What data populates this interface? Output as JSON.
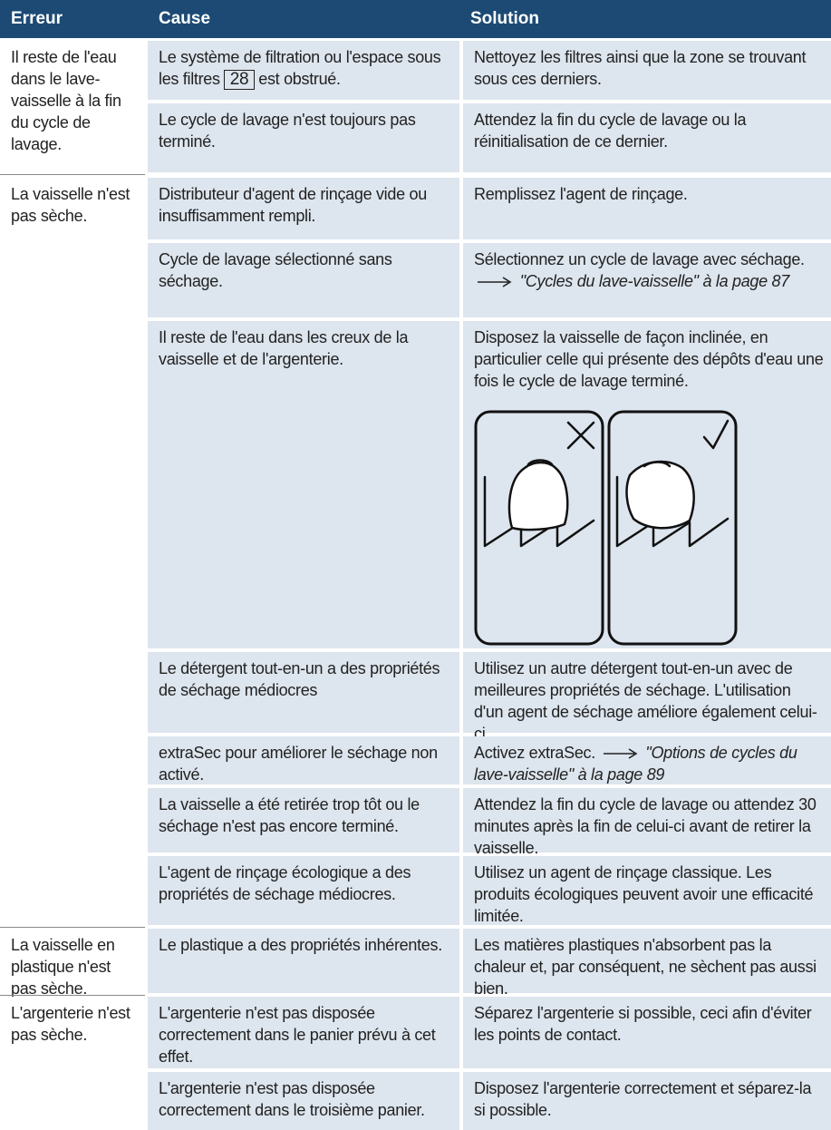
{
  "header": {
    "error": "Erreur",
    "cause": "Cause",
    "solution": "Solution"
  },
  "groups": [
    {
      "error": "Il reste de l'eau dans le lave-vaisselle à la fin du cycle de lavage.",
      "items": [
        {
          "cause": "Le système de filtration ou l'espace sous les filtres",
          "cause_ref": "28",
          "cause_end": "est obstrué.",
          "solution": "Nettoyez les filtres ainsi que la zone se trouvant sous ces derniers."
        },
        {
          "cause": "Le cycle de lavage n'est toujours pas terminé.",
          "solution": "Attendez la fin du cycle de lavage ou la réinitialisation de ce dernier."
        }
      ]
    },
    {
      "error": "La vaisselle n'est pas sèche.",
      "items": [
        {
          "cause": "Distributeur d'agent de rinçage vide ou insuffisamment rempli.",
          "solution": "Remplissez l'agent de rinçage."
        },
        {
          "cause": "Cycle de lavage sélectionné sans séchage.",
          "solution": "Sélectionnez un cycle de lavage avec séchage.",
          "link": "\"Cycles du lave-vaisselle\" à la page 87"
        },
        {
          "cause": "Il reste de l'eau dans les creux de la vaisselle et de l'argenterie.",
          "solution": "Disposez la vaisselle de façon inclinée, en particulier celle qui présente des dépôts d'eau une fois le cycle de lavage terminé."
        },
        {
          "cause": "Le détergent tout-en-un a des propriétés de séchage médiocres",
          "solution": "Utilisez un autre détergent tout-en-un avec de meilleures propriétés de séchage. L'utilisation d'un agent de séchage améliore également celui-ci."
        },
        {
          "cause": "extraSec pour améliorer le séchage non activé.",
          "solution": "Activez extraSec.",
          "link": "\"Options de cycles du lave-vaisselle\" à la page 89"
        },
        {
          "cause": "La vaisselle a été retirée trop tôt ou le séchage n'est pas encore terminé.",
          "solution": "Attendez la fin du cycle de lavage ou attendez 30 minutes après la fin de celui-ci avant de retirer la vaisselle."
        },
        {
          "cause": "L'agent de rinçage écologique a des propriétés de séchage médiocres.",
          "solution": "Utilisez un agent de rinçage classique. Les produits écologiques peuvent avoir une efficacité limitée."
        }
      ]
    },
    {
      "error": "La vaisselle en plastique n'est pas sèche.",
      "items": [
        {
          "cause": "Le plastique a des propriétés inhérentes.",
          "solution": "Les matières plastiques n'absorbent pas la chaleur et, par conséquent, ne sèchent pas aussi bien."
        }
      ]
    },
    {
      "error": "L'argenterie n'est pas sèche.",
      "items": [
        {
          "cause": "L'argenterie n'est pas disposée correctement dans le panier prévu à cet effet.",
          "solution": "Séparez l'argenterie si possible, ceci afin d'éviter les points de contact."
        },
        {
          "cause": "L'argenterie n'est pas disposée correctement dans le troisième panier.",
          "solution": "Disposez l'argenterie correctement et séparez-la si possible."
        }
      ]
    }
  ]
}
